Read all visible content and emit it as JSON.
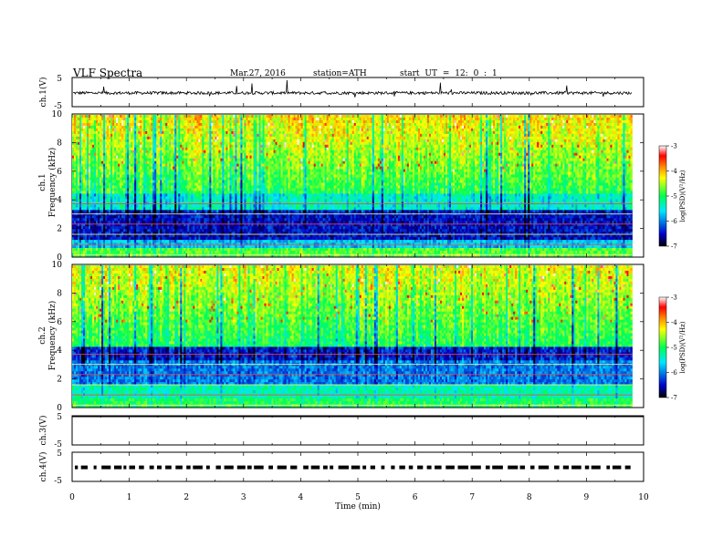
{
  "header": {
    "title": "VLF  Spectra",
    "date": "Mar.27, 2016",
    "station": "station=ATH",
    "start": "start  UT  =    12: 0  : 1"
  },
  "chart_data": [
    {
      "type": "line",
      "panel": "ch1-waveform",
      "ylabel": "ch.1(V)",
      "yticks": [
        "5",
        "-5"
      ],
      "ylim": [
        -5,
        5
      ],
      "baseline": -0.3,
      "noise_amplitude": 0.5,
      "x_range_min": [
        0,
        9.8
      ]
    },
    {
      "type": "heatmap",
      "panel": "ch1-spectrogram",
      "ylabel": "ch.1\nFrequency  (kHz)",
      "ylim_khz": [
        0,
        10
      ],
      "yticks": [
        "0",
        "2",
        "4",
        "6",
        "8",
        "10"
      ],
      "x_range_min": [
        0,
        9.8
      ],
      "colorbar": {
        "label": "log(PSD)(V²/Hz)",
        "range": [
          -7,
          -3
        ],
        "ticks": [
          "-3",
          "-4",
          "-5",
          "-6",
          "-7"
        ]
      }
    },
    {
      "type": "heatmap",
      "panel": "ch2-spectrogram",
      "ylabel": "ch.2\nFrequency  (kHz)",
      "ylim_khz": [
        0,
        10
      ],
      "yticks": [
        "0",
        "2",
        "4",
        "6",
        "8",
        "10"
      ],
      "x_range_min": [
        0,
        9.8
      ],
      "colorbar": {
        "label": "log(PSD)(V²/Hz)",
        "range": [
          -7,
          -3
        ],
        "ticks": [
          "-3",
          "-4",
          "-5",
          "-6",
          "-7"
        ]
      }
    },
    {
      "type": "line",
      "panel": "ch3-waveform",
      "ylabel": "ch.3(V)",
      "yticks": [
        "5",
        "-5"
      ],
      "ylim": [
        -5,
        5
      ],
      "baseline": 5,
      "x_range_min": [
        0,
        9.8
      ]
    },
    {
      "type": "line",
      "panel": "ch4-waveform",
      "ylabel": "ch.4(V)",
      "yticks": [
        "5",
        "-5"
      ],
      "ylim": [
        -5,
        5
      ],
      "baseline": -0.2,
      "pulse_level_v": -0.2,
      "x_range_min": [
        0,
        9.8
      ]
    }
  ],
  "xaxis": {
    "label": "Time  (min)",
    "range": [
      0,
      10
    ],
    "ticks": [
      "0",
      "1",
      "2",
      "3",
      "4",
      "5",
      "6",
      "7",
      "8",
      "9",
      "10"
    ]
  },
  "colors": {
    "colormap": [
      "#000000",
      "#0000c8",
      "#00e6ff",
      "#00ff50",
      "#ffff00",
      "#ff8000",
      "#ff0000",
      "#ffffff"
    ]
  }
}
